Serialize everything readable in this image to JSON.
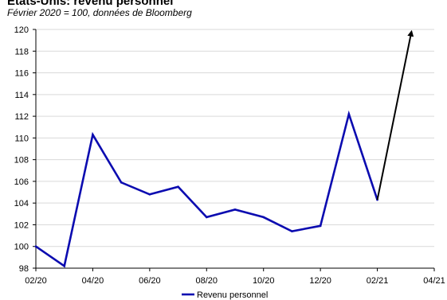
{
  "chart_data": {
    "type": "line",
    "title": "États-Unis: revenu personnel",
    "subtitle": "Février 2020 = 100, données de Bloomberg",
    "xlabel": "",
    "ylabel": "",
    "x_tick_labels": [
      "02/20",
      "04/20",
      "06/20",
      "08/20",
      "10/20",
      "12/20",
      "02/21",
      "04/21"
    ],
    "y_ticks": [
      98,
      100,
      102,
      104,
      106,
      108,
      110,
      112,
      114,
      116,
      118,
      120
    ],
    "ylim": [
      98,
      120
    ],
    "xlim": [
      0,
      14
    ],
    "grid": true,
    "legend_position": "bottom-center",
    "series": [
      {
        "name": "Revenu personnel",
        "color": "#0b0bb0",
        "x": [
          0,
          1,
          2,
          3,
          4,
          5,
          6,
          7,
          8,
          9,
          10,
          11,
          12
        ],
        "values": [
          100.0,
          98.2,
          110.3,
          105.9,
          104.8,
          105.5,
          102.7,
          103.4,
          102.7,
          101.4,
          101.9,
          112.2,
          104.3
        ]
      }
    ],
    "annotations": [
      {
        "type": "arrow",
        "color": "#000000",
        "from": [
          12,
          104.3
        ],
        "to": [
          13.2,
          119.8
        ]
      }
    ]
  }
}
